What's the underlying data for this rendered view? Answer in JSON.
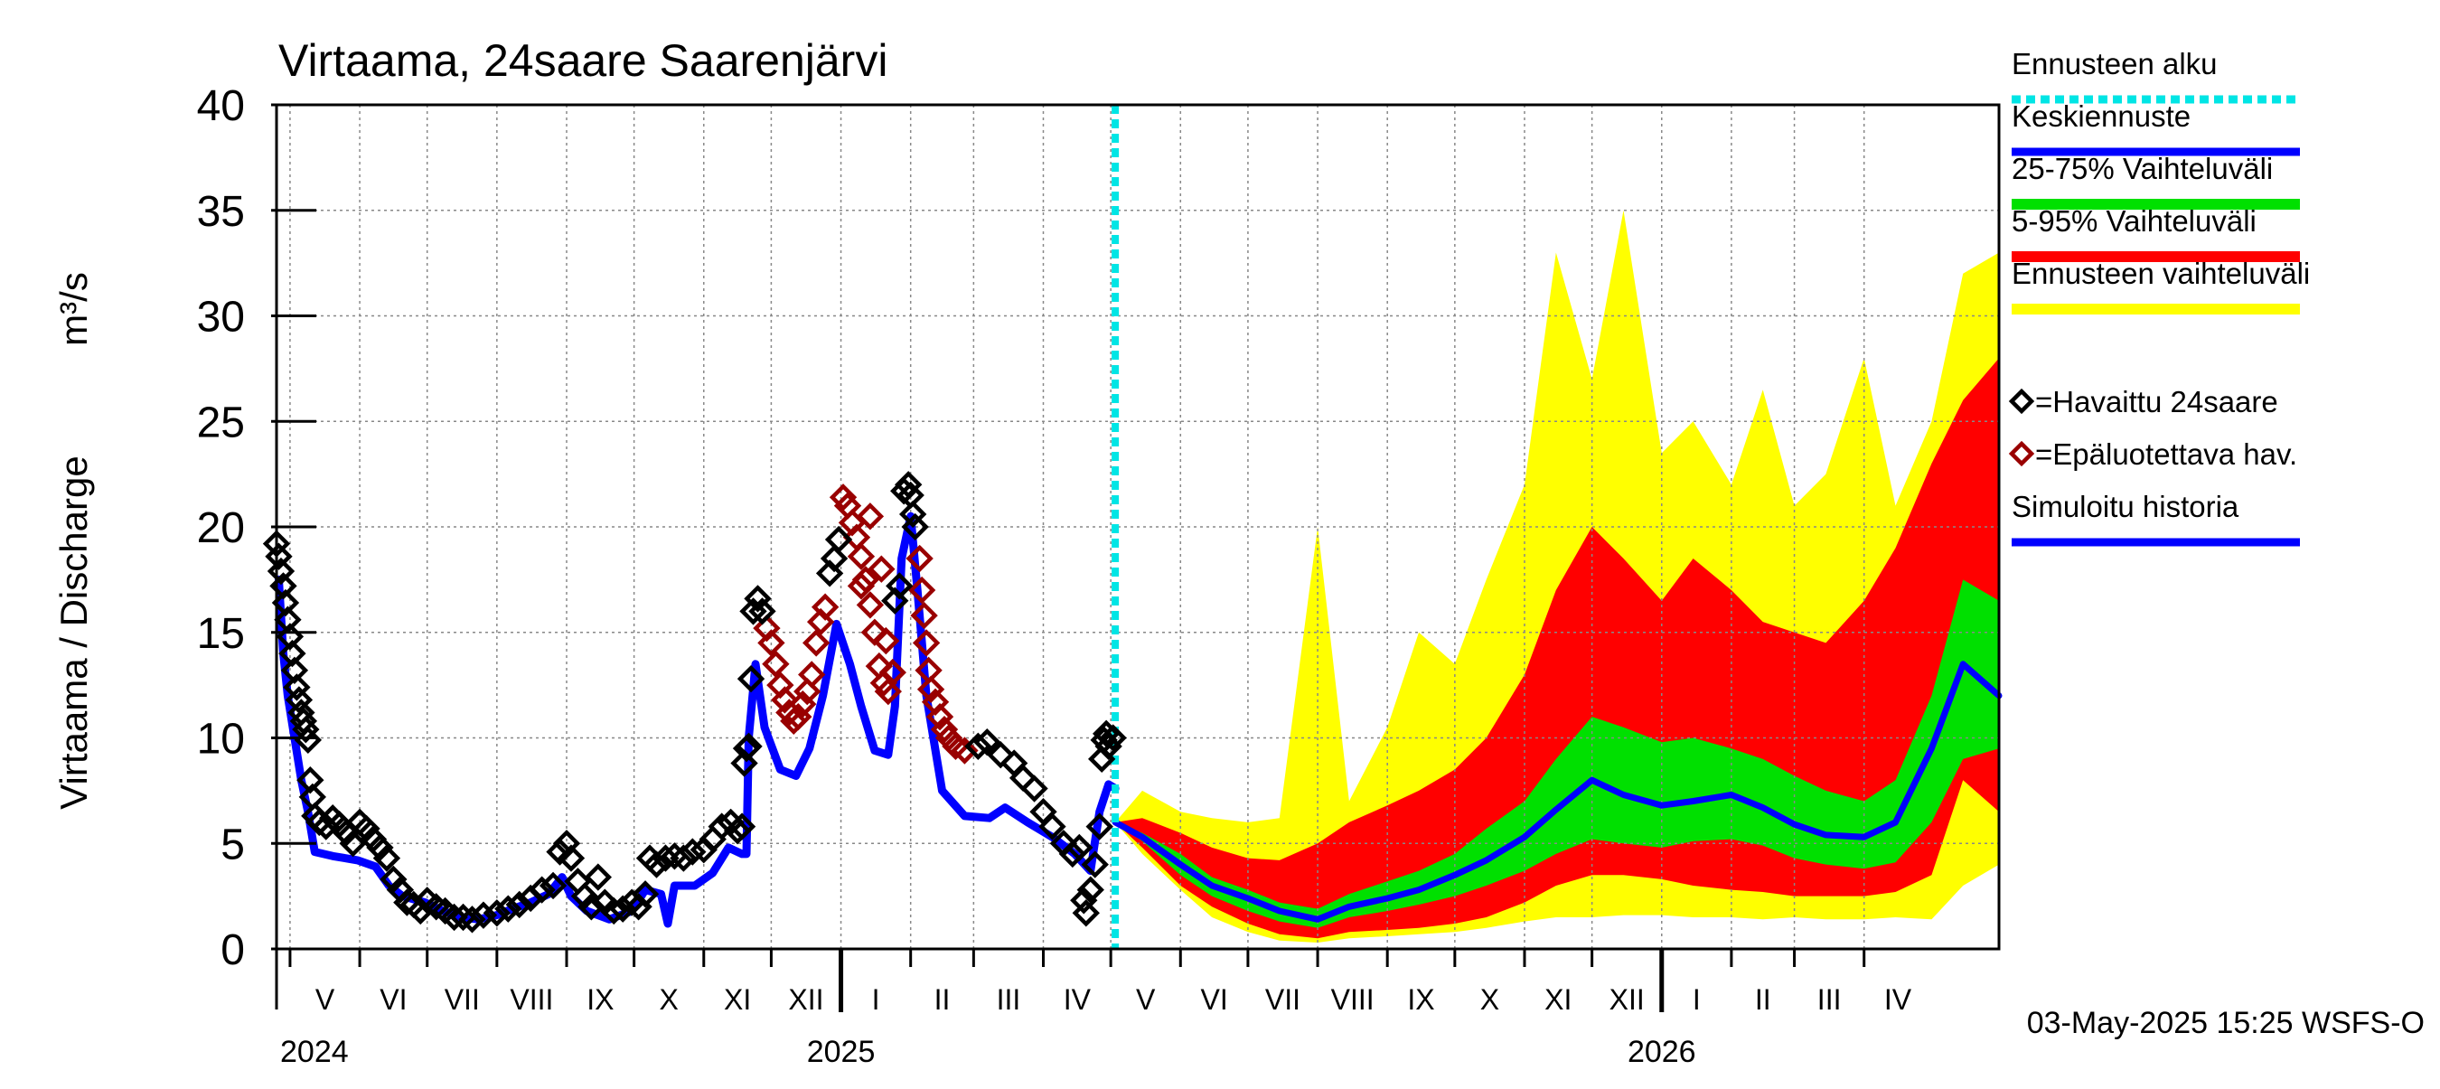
{
  "chart_data": {
    "type": "area",
    "title": "Virtaama, 24saare Saarenjärvi",
    "ylabel": "Virtaama / Discharge",
    "yunit": "m³/s",
    "ylim": [
      0,
      40
    ],
    "yticks": [
      0,
      5,
      10,
      15,
      20,
      25,
      30,
      35,
      40
    ],
    "xlim": [
      "2024-04-25",
      "2026-05-31"
    ],
    "grid": true,
    "forecast_start": "2025-05-03",
    "months": [
      {
        "label": "V",
        "date": "2024-05-01"
      },
      {
        "label": "VI",
        "date": "2024-06-01"
      },
      {
        "label": "VII",
        "date": "2024-07-01"
      },
      {
        "label": "VIII",
        "date": "2024-08-01"
      },
      {
        "label": "IX",
        "date": "2024-09-01"
      },
      {
        "label": "X",
        "date": "2024-10-01"
      },
      {
        "label": "XI",
        "date": "2024-11-01"
      },
      {
        "label": "XII",
        "date": "2024-12-01"
      },
      {
        "label": "I",
        "date": "2025-01-01"
      },
      {
        "label": "II",
        "date": "2025-02-01"
      },
      {
        "label": "III",
        "date": "2025-03-01"
      },
      {
        "label": "IV",
        "date": "2025-04-01"
      },
      {
        "label": "V",
        "date": "2025-05-01"
      },
      {
        "label": "VI",
        "date": "2025-06-01"
      },
      {
        "label": "VII",
        "date": "2025-07-01"
      },
      {
        "label": "VIII",
        "date": "2025-08-01"
      },
      {
        "label": "IX",
        "date": "2025-09-01"
      },
      {
        "label": "X",
        "date": "2025-10-01"
      },
      {
        "label": "XI",
        "date": "2025-11-01"
      },
      {
        "label": "XII",
        "date": "2025-12-01"
      },
      {
        "label": "I",
        "date": "2026-01-01"
      },
      {
        "label": "II",
        "date": "2026-02-01"
      },
      {
        "label": "III",
        "date": "2026-03-01"
      },
      {
        "label": "IV",
        "date": "2026-04-01"
      }
    ],
    "month_end": "2026-05-01",
    "years": [
      {
        "label": "2024",
        "date": "2024-04-25",
        "anchor": "start"
      },
      {
        "label": "2025",
        "date": "2025-01-01",
        "anchor": "middle"
      },
      {
        "label": "2026",
        "date": "2026-01-01",
        "anchor": "middle"
      }
    ],
    "colors": {
      "forecast_start": "#00e5e5",
      "median": "#0000ff",
      "p25_75": "#00e000",
      "p5_95": "#ff0000",
      "range": "#ffff00",
      "observed": "#000000",
      "unreliable": "#990000",
      "simulated": "#0000ff"
    },
    "legend": [
      {
        "label": "Ennusteen alku",
        "key": "forecast_start",
        "style": "dash"
      },
      {
        "label": "Keskiennuste",
        "key": "median",
        "style": "line"
      },
      {
        "label": "25-75% Vaihteluväli",
        "key": "p25_75",
        "style": "band"
      },
      {
        "label": "5-95% Vaihteluväli",
        "key": "p5_95",
        "style": "band"
      },
      {
        "label": "Ennusteen vaihteluväli",
        "key": "range",
        "style": "band"
      },
      {
        "label": "=Havaittu 24saare",
        "key": "observed",
        "style": "marker"
      },
      {
        "label": "=Epäluotettava hav.",
        "key": "unreliable",
        "style": "marker"
      },
      {
        "label": "Simuloitu historia",
        "key": "simulated",
        "style": "line"
      }
    ],
    "footer": "03-May-2025 15:25 WSFS-O",
    "simulated_history": [
      [
        "2024-04-26",
        17.5
      ],
      [
        "2024-04-28",
        14.0
      ],
      [
        "2024-04-30",
        12.0
      ],
      [
        "2024-05-03",
        10.0
      ],
      [
        "2024-05-06",
        8.0
      ],
      [
        "2024-05-09",
        6.5
      ],
      [
        "2024-05-12",
        4.6
      ],
      [
        "2024-05-20",
        4.4
      ],
      [
        "2024-05-31",
        4.2
      ],
      [
        "2024-06-08",
        3.9
      ],
      [
        "2024-06-14",
        3.0
      ],
      [
        "2024-06-20",
        2.5
      ],
      [
        "2024-06-30",
        2.2
      ],
      [
        "2024-07-08",
        1.8
      ],
      [
        "2024-07-16",
        1.5
      ],
      [
        "2024-07-24",
        1.4
      ],
      [
        "2024-08-01",
        1.6
      ],
      [
        "2024-08-08",
        1.9
      ],
      [
        "2024-08-16",
        2.2
      ],
      [
        "2024-08-24",
        2.6
      ],
      [
        "2024-08-30",
        3.4
      ],
      [
        "2024-09-03",
        2.5
      ],
      [
        "2024-09-10",
        1.8
      ],
      [
        "2024-09-20",
        1.4
      ],
      [
        "2024-09-30",
        1.8
      ],
      [
        "2024-10-06",
        2.8
      ],
      [
        "2024-10-13",
        2.6
      ],
      [
        "2024-10-16",
        1.2
      ],
      [
        "2024-10-19",
        3.0
      ],
      [
        "2024-10-28",
        3.0
      ],
      [
        "2024-11-05",
        3.6
      ],
      [
        "2024-11-12",
        4.8
      ],
      [
        "2024-11-18",
        4.5
      ],
      [
        "2024-11-20",
        4.5
      ],
      [
        "2024-11-21",
        10.0
      ],
      [
        "2024-11-24",
        13.5
      ],
      [
        "2024-11-28",
        10.5
      ],
      [
        "2024-12-05",
        8.5
      ],
      [
        "2024-12-12",
        8.2
      ],
      [
        "2024-12-18",
        9.5
      ],
      [
        "2024-12-24",
        12.0
      ],
      [
        "2024-12-30",
        15.4
      ],
      [
        "2025-01-05",
        13.5
      ],
      [
        "2025-01-10",
        11.5
      ],
      [
        "2025-01-16",
        9.4
      ],
      [
        "2025-01-22",
        9.2
      ],
      [
        "2025-01-25",
        11.5
      ],
      [
        "2025-01-28",
        18.5
      ],
      [
        "2025-02-01",
        20.5
      ],
      [
        "2025-02-04",
        17.0
      ],
      [
        "2025-02-08",
        12.0
      ],
      [
        "2025-02-15",
        7.5
      ],
      [
        "2025-02-25",
        6.3
      ],
      [
        "2025-03-08",
        6.2
      ],
      [
        "2025-03-15",
        6.7
      ],
      [
        "2025-03-25",
        6.0
      ],
      [
        "2025-04-05",
        5.3
      ],
      [
        "2025-04-15",
        4.5
      ],
      [
        "2025-04-22",
        3.7
      ],
      [
        "2025-04-26",
        6.5
      ],
      [
        "2025-04-30",
        7.8
      ],
      [
        "2025-05-03",
        7.6
      ]
    ],
    "observed_history": [
      [
        "2024-04-25",
        19.2
      ],
      [
        "2024-04-26",
        18.6
      ],
      [
        "2024-04-27",
        17.9
      ],
      [
        "2024-04-28",
        17.2
      ],
      [
        "2024-04-29",
        16.4
      ],
      [
        "2024-04-30",
        15.6
      ],
      [
        "2024-05-01",
        14.8
      ],
      [
        "2024-05-02",
        14.0
      ],
      [
        "2024-05-03",
        13.2
      ],
      [
        "2024-05-04",
        12.4
      ],
      [
        "2024-05-05",
        11.8
      ],
      [
        "2024-05-06",
        11.2
      ],
      [
        "2024-05-07",
        10.8
      ],
      [
        "2024-05-08",
        10.4
      ],
      [
        "2024-05-09",
        9.9
      ],
      [
        "2024-05-10",
        8.0
      ],
      [
        "2024-05-11",
        7.2
      ],
      [
        "2024-05-12",
        6.3
      ],
      [
        "2024-05-14",
        6.0
      ],
      [
        "2024-05-17",
        5.8
      ],
      [
        "2024-05-20",
        6.2
      ],
      [
        "2024-05-23",
        5.9
      ],
      [
        "2024-05-26",
        5.5
      ],
      [
        "2024-05-29",
        5.0
      ],
      [
        "2024-06-01",
        6.0
      ],
      [
        "2024-06-04",
        5.7
      ],
      [
        "2024-06-07",
        5.2
      ],
      [
        "2024-06-10",
        4.8
      ],
      [
        "2024-06-13",
        4.3
      ],
      [
        "2024-06-16",
        3.3
      ],
      [
        "2024-06-19",
        2.8
      ],
      [
        "2024-06-22",
        2.2
      ],
      [
        "2024-06-25",
        2.1
      ],
      [
        "2024-06-28",
        1.8
      ],
      [
        "2024-07-01",
        2.3
      ],
      [
        "2024-07-05",
        2.0
      ],
      [
        "2024-07-09",
        1.8
      ],
      [
        "2024-07-13",
        1.5
      ],
      [
        "2024-07-17",
        1.5
      ],
      [
        "2024-07-21",
        1.4
      ],
      [
        "2024-07-26",
        1.6
      ],
      [
        "2024-08-01",
        1.7
      ],
      [
        "2024-08-06",
        1.9
      ],
      [
        "2024-08-11",
        2.1
      ],
      [
        "2024-08-16",
        2.4
      ],
      [
        "2024-08-21",
        2.8
      ],
      [
        "2024-08-26",
        3.0
      ],
      [
        "2024-08-29",
        4.6
      ],
      [
        "2024-09-01",
        5.0
      ],
      [
        "2024-09-03",
        4.3
      ],
      [
        "2024-09-06",
        3.2
      ],
      [
        "2024-09-09",
        2.5
      ],
      [
        "2024-09-12",
        2.0
      ],
      [
        "2024-09-15",
        3.4
      ],
      [
        "2024-09-18",
        2.2
      ],
      [
        "2024-09-22",
        1.8
      ],
      [
        "2024-09-26",
        1.9
      ],
      [
        "2024-09-30",
        2.2
      ],
      [
        "2024-10-03",
        2.0
      ],
      [
        "2024-10-06",
        2.6
      ],
      [
        "2024-10-08",
        4.3
      ],
      [
        "2024-10-11",
        4.0
      ],
      [
        "2024-10-15",
        4.3
      ],
      [
        "2024-10-19",
        4.4
      ],
      [
        "2024-10-23",
        4.3
      ],
      [
        "2024-10-27",
        4.6
      ],
      [
        "2024-11-01",
        4.7
      ],
      [
        "2024-11-05",
        5.2
      ],
      [
        "2024-11-09",
        5.8
      ],
      [
        "2024-11-13",
        6.0
      ],
      [
        "2024-11-16",
        5.6
      ],
      [
        "2024-11-18",
        5.8
      ],
      [
        "2024-11-19",
        8.8
      ],
      [
        "2024-11-20",
        9.5
      ],
      [
        "2024-11-21",
        9.6
      ],
      [
        "2024-11-22",
        12.8
      ],
      [
        "2024-11-23",
        16.0
      ],
      [
        "2024-11-25",
        16.6
      ],
      [
        "2024-11-27",
        16.0
      ],
      [
        "2024-12-27",
        17.8
      ],
      [
        "2024-12-29",
        18.5
      ],
      [
        "2024-12-31",
        19.4
      ],
      [
        "2025-01-25",
        16.5
      ],
      [
        "2025-01-27",
        17.2
      ],
      [
        "2025-01-29",
        21.7
      ],
      [
        "2025-01-31",
        22.0
      ],
      [
        "2025-02-01",
        21.5
      ],
      [
        "2025-02-02",
        20.6
      ],
      [
        "2025-02-03",
        20.0
      ],
      [
        "2025-03-03",
        9.6
      ],
      [
        "2025-03-07",
        9.8
      ],
      [
        "2025-03-13",
        9.2
      ],
      [
        "2025-03-19",
        8.8
      ],
      [
        "2025-03-23",
        8.1
      ],
      [
        "2025-03-28",
        7.6
      ],
      [
        "2025-04-01",
        6.5
      ],
      [
        "2025-04-05",
        5.8
      ],
      [
        "2025-04-10",
        5.0
      ],
      [
        "2025-04-14",
        4.5
      ],
      [
        "2025-04-17",
        4.8
      ],
      [
        "2025-04-19",
        2.3
      ],
      [
        "2025-04-20",
        1.7
      ],
      [
        "2025-04-22",
        2.8
      ],
      [
        "2025-04-24",
        4.0
      ],
      [
        "2025-04-26",
        5.8
      ],
      [
        "2025-04-27",
        9.0
      ],
      [
        "2025-04-28",
        9.9
      ],
      [
        "2025-04-29",
        10.2
      ],
      [
        "2025-04-30",
        9.6
      ],
      [
        "2025-05-02",
        10.0
      ]
    ],
    "unreliable_history": [
      [
        "2024-11-29",
        15.2
      ],
      [
        "2024-12-01",
        14.5
      ],
      [
        "2024-12-03",
        13.5
      ],
      [
        "2024-12-05",
        12.5
      ],
      [
        "2024-12-07",
        11.8
      ],
      [
        "2024-12-09",
        11.2
      ],
      [
        "2024-12-11",
        10.8
      ],
      [
        "2024-12-13",
        11.0
      ],
      [
        "2024-12-15",
        11.6
      ],
      [
        "2024-12-17",
        12.2
      ],
      [
        "2024-12-19",
        13.0
      ],
      [
        "2024-12-21",
        14.5
      ],
      [
        "2024-12-23",
        15.5
      ],
      [
        "2024-12-25",
        16.2
      ],
      [
        "2025-01-02",
        21.4
      ],
      [
        "2025-01-04",
        21.0
      ],
      [
        "2025-01-06",
        20.2
      ],
      [
        "2025-01-08",
        19.5
      ],
      [
        "2025-01-10",
        18.6
      ],
      [
        "2025-01-12",
        17.5
      ],
      [
        "2025-01-14",
        16.3
      ],
      [
        "2025-01-16",
        15.0
      ],
      [
        "2025-01-18",
        13.4
      ],
      [
        "2025-01-20",
        12.6
      ],
      [
        "2025-01-22",
        12.2
      ],
      [
        "2025-01-24",
        13.1
      ],
      [
        "2025-01-10",
        17.2
      ],
      [
        "2025-01-14",
        20.5
      ],
      [
        "2025-01-19",
        18.0
      ],
      [
        "2025-01-21",
        14.6
      ],
      [
        "2025-02-05",
        18.5
      ],
      [
        "2025-02-06",
        17.0
      ],
      [
        "2025-02-07",
        15.8
      ],
      [
        "2025-02-08",
        14.5
      ],
      [
        "2025-02-09",
        13.2
      ],
      [
        "2025-02-10",
        12.3
      ],
      [
        "2025-02-12",
        11.7
      ],
      [
        "2025-02-14",
        11.0
      ],
      [
        "2025-02-16",
        10.4
      ],
      [
        "2025-02-18",
        10.0
      ],
      [
        "2025-02-21",
        9.6
      ],
      [
        "2025-02-25",
        9.4
      ]
    ],
    "forecast_dates": [
      "2025-05-03",
      "2025-05-15",
      "2025-06-01",
      "2025-06-15",
      "2025-07-01",
      "2025-07-15",
      "2025-08-01",
      "2025-08-15",
      "2025-09-01",
      "2025-09-15",
      "2025-10-01",
      "2025-10-15",
      "2025-11-01",
      "2025-11-15",
      "2025-12-01",
      "2025-12-15",
      "2026-01-01",
      "2026-01-15",
      "2026-02-01",
      "2026-02-15",
      "2026-03-01",
      "2026-03-15",
      "2026-04-01",
      "2026-04-15",
      "2026-05-01",
      "2026-05-15",
      "2026-05-31"
    ],
    "forecast_median": [
      6.0,
      5.3,
      4.0,
      3.0,
      2.4,
      1.8,
      1.4,
      2.0,
      2.4,
      2.8,
      3.5,
      4.2,
      5.3,
      6.6,
      8.0,
      7.3,
      6.8,
      7.0,
      7.3,
      6.7,
      5.9,
      5.4,
      5.3,
      6.0,
      9.5,
      13.5,
      12.0
    ],
    "forecast_p25": [
      6.0,
      5.1,
      3.5,
      2.5,
      1.8,
      1.3,
      1.0,
      1.5,
      1.8,
      2.1,
      2.5,
      3.0,
      3.7,
      4.5,
      5.2,
      5.0,
      4.8,
      5.1,
      5.2,
      4.9,
      4.3,
      4.0,
      3.8,
      4.1,
      6.0,
      9.0,
      9.5
    ],
    "forecast_p75": [
      6.0,
      5.5,
      4.5,
      3.4,
      2.8,
      2.2,
      1.9,
      2.6,
      3.2,
      3.7,
      4.5,
      5.7,
      7.0,
      9.0,
      11.0,
      10.5,
      9.8,
      10.0,
      9.5,
      9.0,
      8.2,
      7.5,
      7.0,
      8.0,
      12.0,
      17.5,
      16.5
    ],
    "forecast_p5": [
      6.0,
      4.8,
      3.0,
      2.0,
      1.2,
      0.7,
      0.5,
      0.8,
      0.9,
      1.0,
      1.2,
      1.5,
      2.2,
      3.0,
      3.5,
      3.5,
      3.3,
      3.0,
      2.8,
      2.7,
      2.5,
      2.5,
      2.5,
      2.7,
      3.5,
      8.0,
      6.5
    ],
    "forecast_p95": [
      6.0,
      6.2,
      5.5,
      4.8,
      4.3,
      4.2,
      5.0,
      6.0,
      6.8,
      7.5,
      8.5,
      10.0,
      13.0,
      17.0,
      20.0,
      18.5,
      16.5,
      18.5,
      17.0,
      15.5,
      15.0,
      14.5,
      16.5,
      19.0,
      23.0,
      26.0,
      28.0
    ],
    "forecast_min": [
      6.0,
      4.5,
      2.8,
      1.5,
      0.8,
      0.4,
      0.3,
      0.5,
      0.6,
      0.7,
      0.8,
      1.0,
      1.3,
      1.5,
      1.5,
      1.6,
      1.6,
      1.5,
      1.5,
      1.4,
      1.5,
      1.4,
      1.4,
      1.5,
      1.4,
      3.0,
      4.0
    ],
    "forecast_max": [
      6.0,
      7.5,
      6.5,
      6.2,
      6.0,
      6.2,
      20.0,
      7.0,
      10.5,
      15.0,
      13.5,
      17.5,
      22.0,
      33.0,
      27.0,
      35.0,
      23.5,
      25.0,
      22.0,
      26.5,
      21.0,
      22.5,
      28.0,
      21.0,
      25.0,
      32.0,
      33.0
    ]
  }
}
